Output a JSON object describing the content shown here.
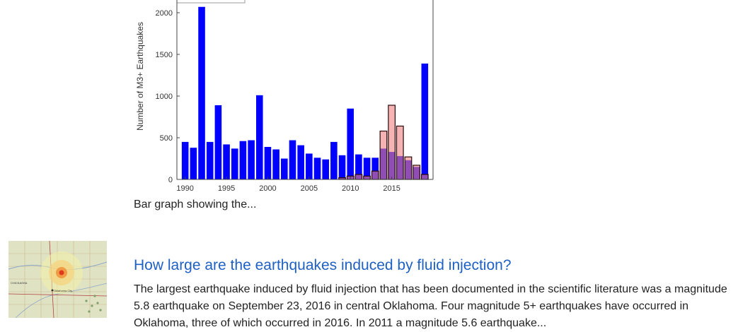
{
  "chart_data": {
    "type": "bar",
    "ylabel": "Number of M3+ Earthquakes",
    "ylim": [
      0,
      2000
    ],
    "yticks": [
      0,
      500,
      1000,
      1500,
      2000
    ],
    "xticks": [
      1990,
      1995,
      2000,
      2005,
      2010,
      2015
    ],
    "legend": "top-left",
    "series": [
      {
        "color": "#0000ff",
        "x": [
          1990,
          1991,
          1992,
          1993,
          1994,
          1995,
          1996,
          1997,
          1998,
          1999,
          2000,
          2001,
          2002,
          2003,
          2004,
          2005,
          2006,
          2007,
          2008,
          2009,
          2010,
          2011,
          2012,
          2013,
          2014,
          2015,
          2016,
          2017,
          2018,
          2019
        ],
        "values": [
          450,
          380,
          2070,
          450,
          890,
          420,
          370,
          460,
          470,
          1010,
          390,
          360,
          250,
          470,
          410,
          310,
          260,
          240,
          450,
          290,
          850,
          300,
          260,
          260,
          370,
          330,
          280,
          230,
          150,
          1390
        ]
      },
      {
        "color": "#f08080",
        "x": [
          2009,
          2010,
          2011,
          2012,
          2013,
          2014,
          2015,
          2016,
          2017,
          2018,
          2019
        ],
        "values": [
          20,
          40,
          60,
          40,
          100,
          580,
          890,
          640,
          270,
          170,
          60
        ]
      }
    ]
  },
  "caption": "Bar graph showing the...",
  "result": {
    "title": "How large are the earthquakes induced by fluid injection?",
    "description": "The largest earthquake induced by fluid injection that has been documented in the scientific literature was a magnitude 5.8 earthquake on September 23, 2016 in central Oklahoma. Four magnitude 5+ earthquakes have occurred in Oklahoma, three of which occurred in 2016. In 2011 a magnitude 5.6 earthquake...",
    "thumbnail_labels": {
      "oklahoma_city": "Oklahoma City",
      "chickasha": "CHICKASHA"
    }
  }
}
